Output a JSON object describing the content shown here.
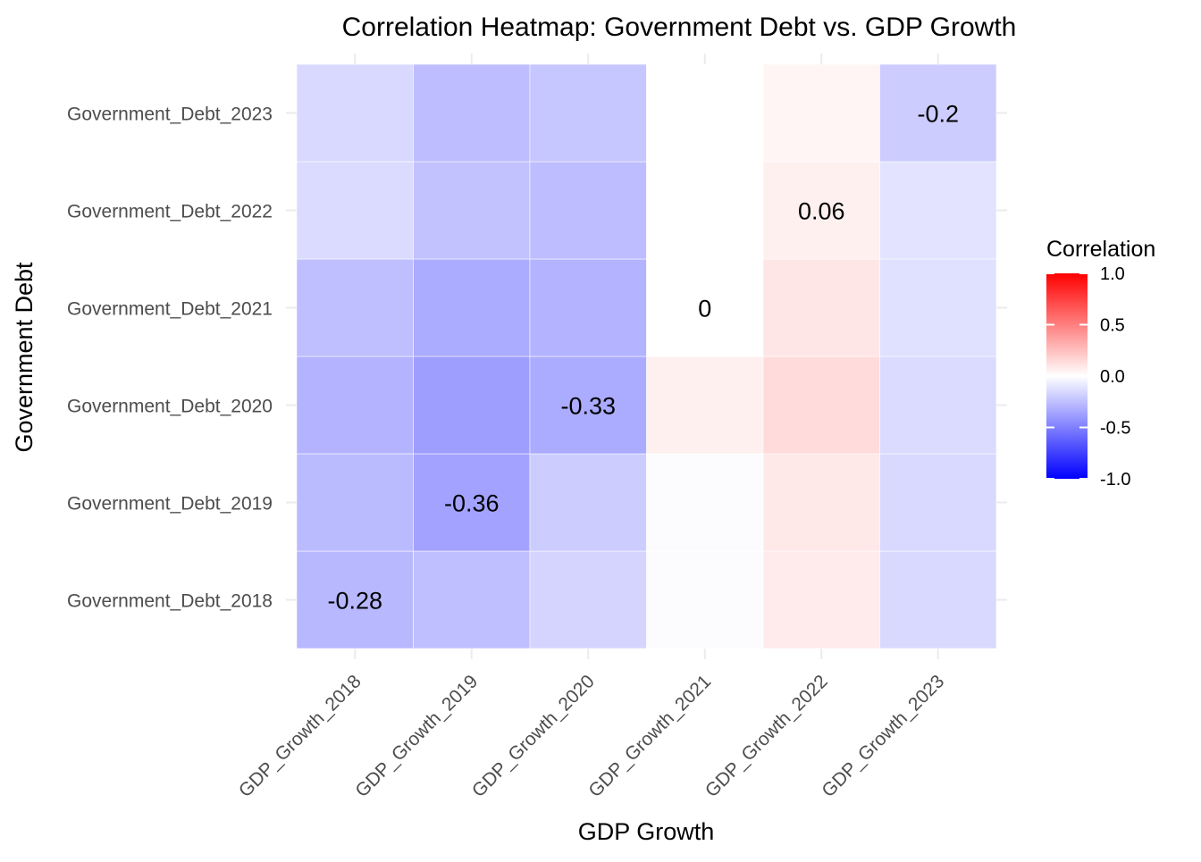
{
  "chart_data": {
    "type": "heatmap",
    "title": "Correlation Heatmap: Government Debt vs. GDP Growth",
    "xlabel": "GDP Growth",
    "ylabel": "Government Debt",
    "x_categories": [
      "GDP_Growth_2018",
      "GDP_Growth_2019",
      "GDP_Growth_2020",
      "GDP_Growth_2021",
      "GDP_Growth_2022",
      "GDP_Growth_2023"
    ],
    "y_categories": [
      "Government_Debt_2018",
      "Government_Debt_2019",
      "Government_Debt_2020",
      "Government_Debt_2021",
      "Government_Debt_2022",
      "Government_Debt_2023"
    ],
    "values": [
      [
        -0.28,
        -0.25,
        -0.17,
        -0.01,
        0.08,
        -0.15
      ],
      [
        -0.27,
        -0.36,
        -0.2,
        -0.01,
        0.09,
        -0.15
      ],
      [
        -0.3,
        -0.38,
        -0.33,
        0.06,
        0.14,
        -0.14
      ],
      [
        -0.25,
        -0.33,
        -0.3,
        0.0,
        0.1,
        -0.12
      ],
      [
        -0.14,
        -0.24,
        -0.26,
        0.0,
        0.06,
        -0.11
      ],
      [
        -0.15,
        -0.26,
        -0.22,
        0.0,
        0.04,
        -0.2
      ]
    ],
    "labeled_cells": [
      {
        "x": "GDP_Growth_2018",
        "y": "Government_Debt_2018",
        "label": "-0.28"
      },
      {
        "x": "GDP_Growth_2019",
        "y": "Government_Debt_2019",
        "label": "-0.36"
      },
      {
        "x": "GDP_Growth_2020",
        "y": "Government_Debt_2020",
        "label": "-0.33"
      },
      {
        "x": "GDP_Growth_2021",
        "y": "Government_Debt_2021",
        "label": "0"
      },
      {
        "x": "GDP_Growth_2022",
        "y": "Government_Debt_2022",
        "label": "0.06"
      },
      {
        "x": "GDP_Growth_2023",
        "y": "Government_Debt_2023",
        "label": "-0.2"
      }
    ],
    "legend": {
      "title": "Correlation",
      "placement": "right",
      "limits": [
        -1,
        1
      ],
      "ticks": [
        1.0,
        0.5,
        0.0,
        -0.5,
        -1.0
      ],
      "tick_labels": [
        "1.0",
        "0.5",
        "0.0",
        "-0.5",
        "-1.0"
      ],
      "low_color": "#0000ff",
      "mid_color": "#ffffff",
      "high_color": "#ff0000"
    },
    "grid": true
  }
}
